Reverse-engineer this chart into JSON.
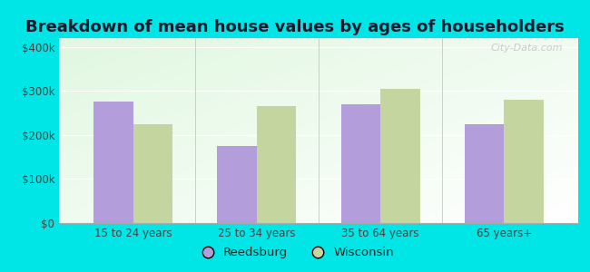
{
  "title": "Breakdown of mean house values by ages of householders",
  "categories": [
    "15 to 24 years",
    "25 to 34 years",
    "35 to 64 years",
    "65 years+"
  ],
  "reedsburg": [
    275000,
    175000,
    270000,
    225000
  ],
  "wisconsin": [
    225000,
    265000,
    305000,
    280000
  ],
  "reedsburg_color": "#b39ddb",
  "wisconsin_color": "#c5d5a0",
  "background_color": "#00e5e5",
  "yticks": [
    0,
    100000,
    200000,
    300000,
    400000
  ],
  "ytick_labels": [
    "$0",
    "$100k",
    "$200k",
    "$300k",
    "$400k"
  ],
  "ylim": [
    0,
    420000
  ],
  "legend_labels": [
    "Reedsburg",
    "Wisconsin"
  ],
  "watermark": "City-Data.com",
  "bar_width": 0.32,
  "title_fontsize": 13,
  "tick_fontsize": 8.5,
  "legend_fontsize": 9.5
}
